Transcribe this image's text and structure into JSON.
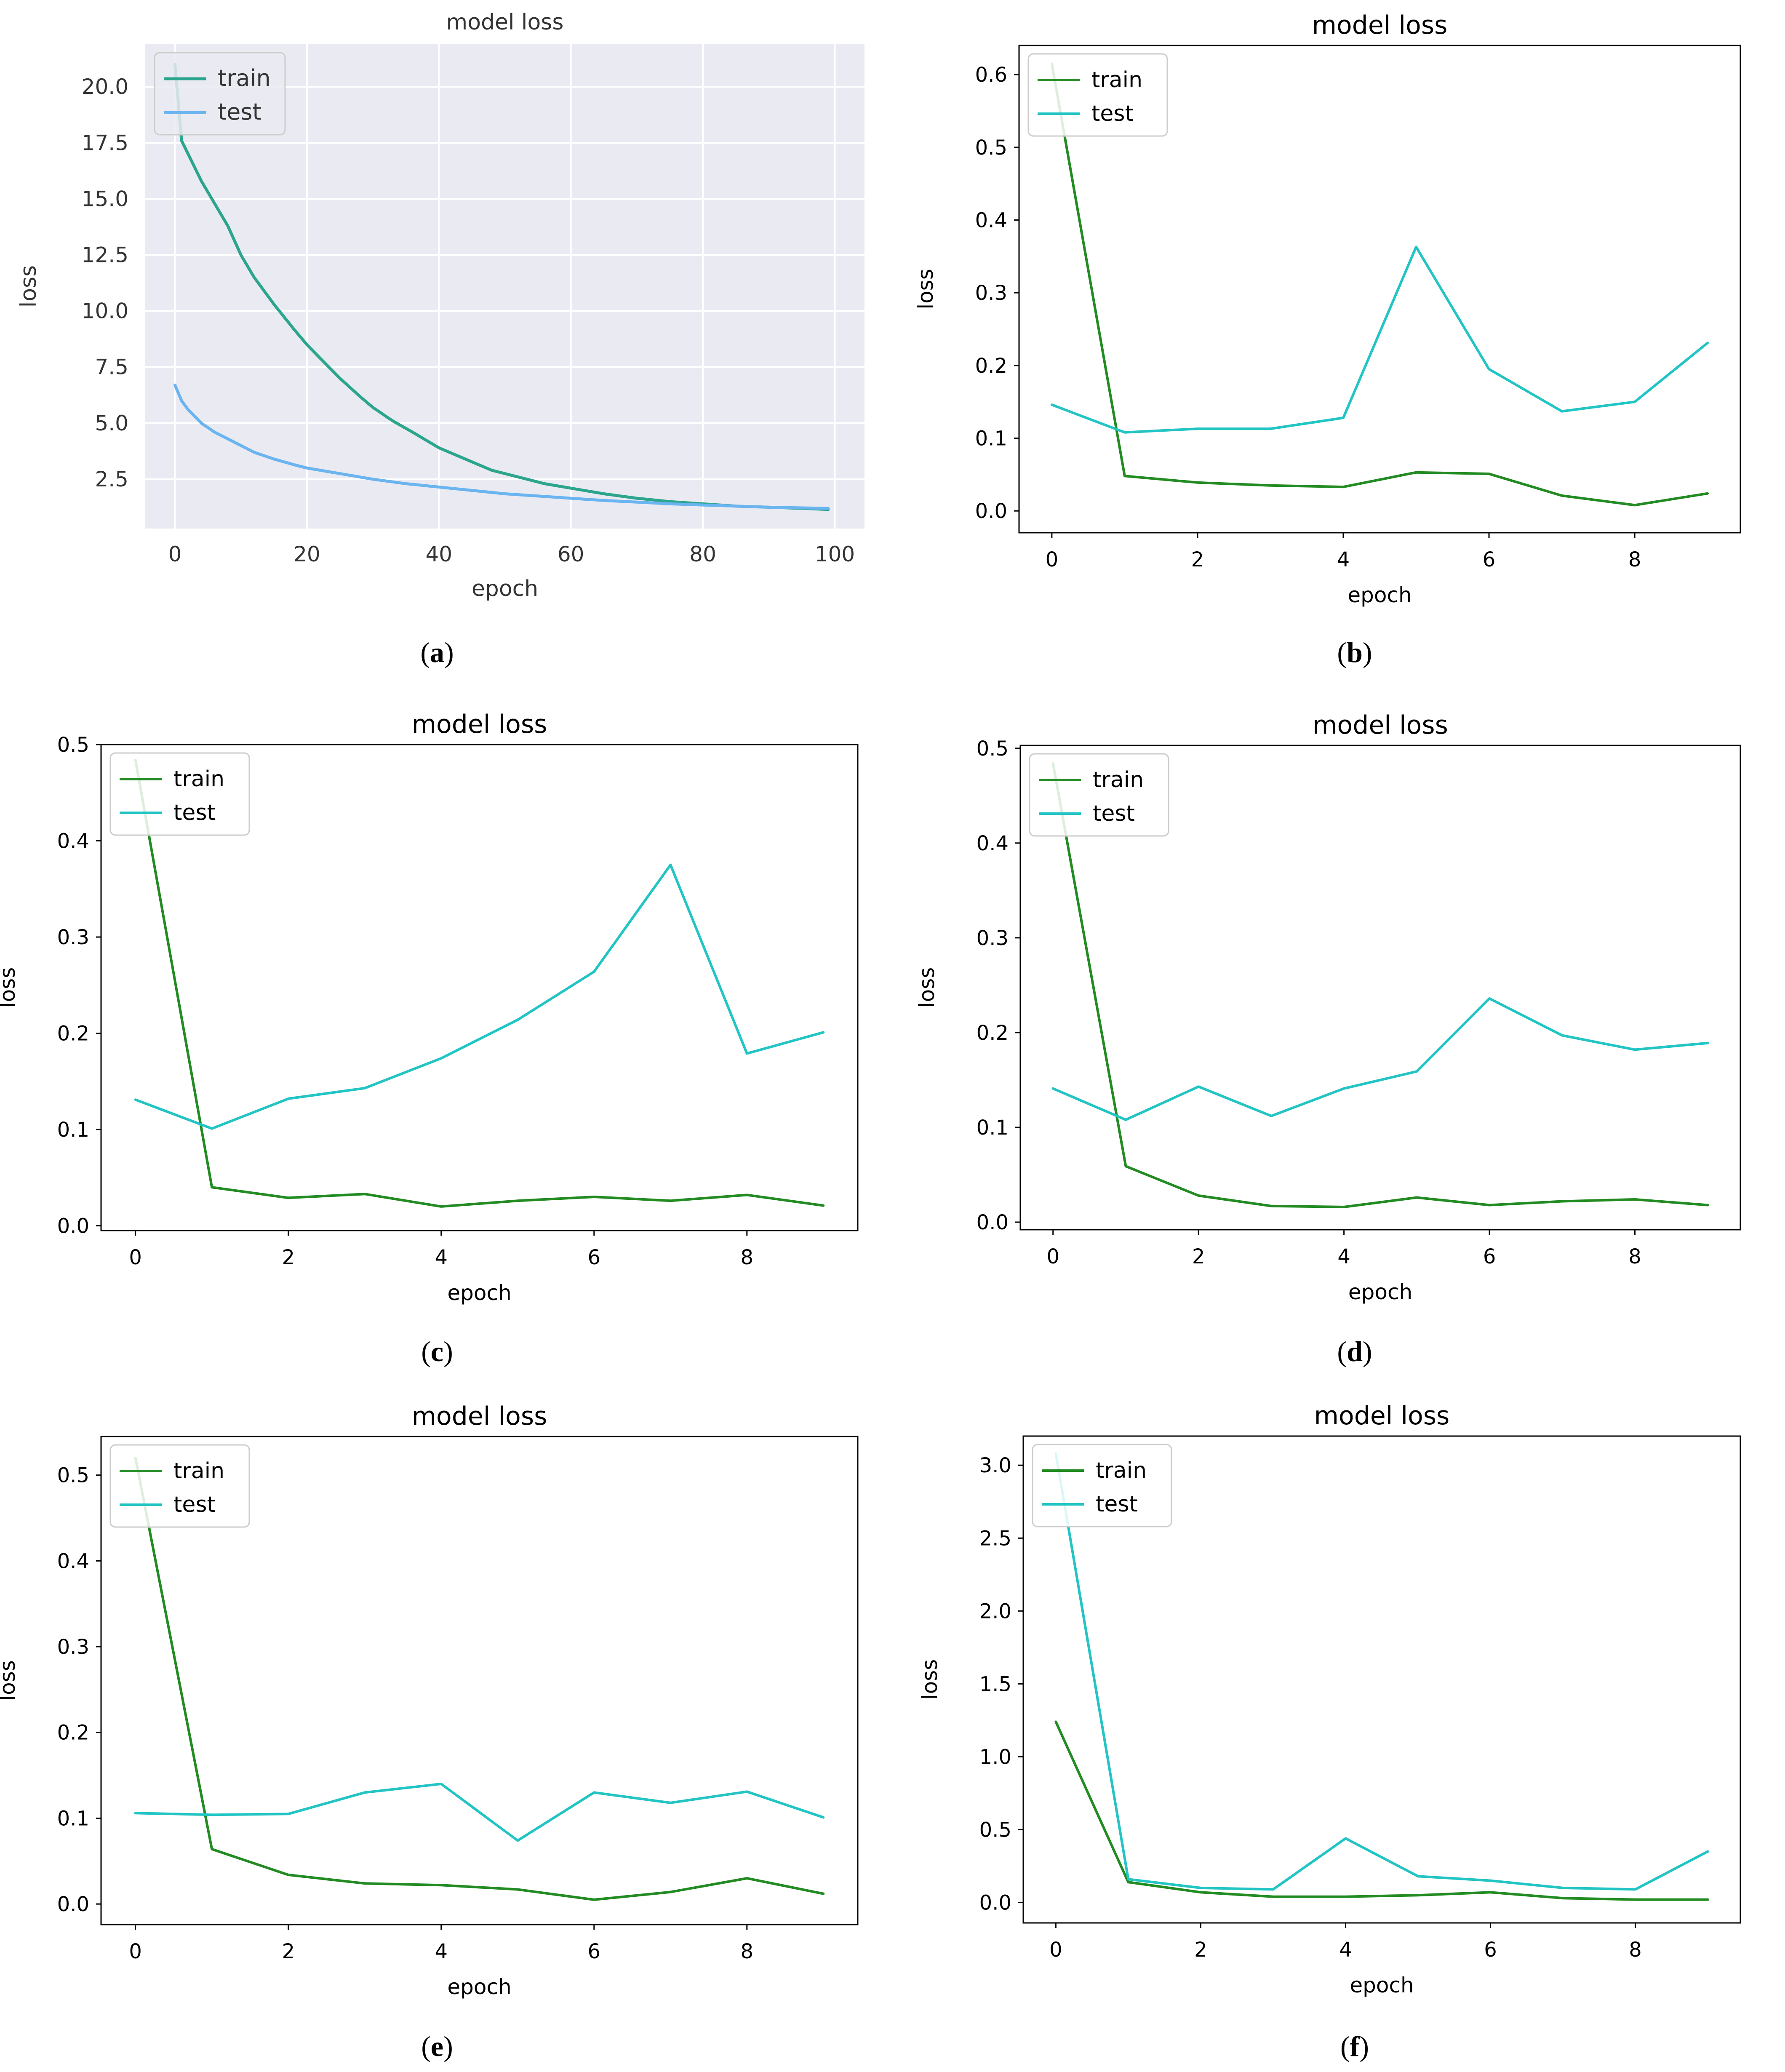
{
  "chart_data": [
    {
      "id": "a",
      "type": "line",
      "caption_letter": "a",
      "style": "seaborn",
      "title": "model loss",
      "xlabel": "epoch",
      "ylabel": "loss",
      "xlim": [
        -4.5,
        104.5
      ],
      "ylim": [
        0.3,
        21.9
      ],
      "xticks": [
        0,
        20,
        40,
        60,
        80,
        100
      ],
      "xtick_labels": [
        "0",
        "20",
        "40",
        "60",
        "80",
        "100"
      ],
      "yticks": [
        2.5,
        5.0,
        7.5,
        10.0,
        12.5,
        15.0,
        17.5,
        20.0
      ],
      "ytick_labels": [
        "2.5",
        "5.0",
        "7.5",
        "10.0",
        "12.5",
        "15.0",
        "17.5",
        "20.0"
      ],
      "legend": "upper-left",
      "series": [
        {
          "name": "train",
          "color": "#2ca58d",
          "x": [
            0,
            1,
            2,
            4,
            6,
            8,
            10,
            12,
            15,
            18,
            20,
            22,
            25,
            28,
            30,
            33,
            36,
            40,
            44,
            48,
            52,
            56,
            60,
            65,
            70,
            75,
            80,
            85,
            90,
            95,
            99
          ],
          "y": [
            21.0,
            17.6,
            17.0,
            15.8,
            14.8,
            13.8,
            12.5,
            11.5,
            10.3,
            9.2,
            8.5,
            7.9,
            7.0,
            6.2,
            5.7,
            5.1,
            4.6,
            3.9,
            3.4,
            2.9,
            2.6,
            2.3,
            2.1,
            1.85,
            1.65,
            1.5,
            1.4,
            1.3,
            1.25,
            1.2,
            1.15
          ]
        },
        {
          "name": "test",
          "color": "#6ab4f0",
          "x": [
            0,
            1,
            2,
            4,
            6,
            8,
            10,
            12,
            15,
            18,
            20,
            25,
            30,
            35,
            40,
            45,
            50,
            55,
            60,
            65,
            70,
            75,
            80,
            85,
            90,
            95,
            99
          ],
          "y": [
            6.7,
            6.0,
            5.6,
            5.0,
            4.6,
            4.3,
            4.0,
            3.7,
            3.4,
            3.15,
            3.0,
            2.75,
            2.5,
            2.3,
            2.15,
            2.0,
            1.85,
            1.75,
            1.65,
            1.55,
            1.48,
            1.4,
            1.35,
            1.3,
            1.25,
            1.22,
            1.2
          ]
        }
      ]
    },
    {
      "id": "b",
      "type": "line",
      "caption_letter": "b",
      "style": "classic",
      "title": "model loss",
      "xlabel": "epoch",
      "ylabel": "loss",
      "xlim": [
        -0.45,
        9.45
      ],
      "ylim": [
        -0.03,
        0.64
      ],
      "xticks": [
        0,
        2,
        4,
        6,
        8
      ],
      "xtick_labels": [
        "0",
        "2",
        "4",
        "6",
        "8"
      ],
      "yticks": [
        0.0,
        0.1,
        0.2,
        0.3,
        0.4,
        0.5,
        0.6
      ],
      "ytick_labels": [
        "0.0",
        "0.1",
        "0.2",
        "0.3",
        "0.4",
        "0.5",
        "0.6"
      ],
      "legend": "upper-left",
      "series": [
        {
          "name": "train",
          "color": "#228b22",
          "x": [
            0,
            1,
            2,
            3,
            4,
            5,
            6,
            7,
            8,
            9
          ],
          "y": [
            0.615,
            0.048,
            0.039,
            0.035,
            0.033,
            0.053,
            0.051,
            0.021,
            0.008,
            0.024
          ]
        },
        {
          "name": "test",
          "color": "#22c4c4",
          "x": [
            0,
            1,
            2,
            3,
            4,
            5,
            6,
            7,
            8,
            9
          ],
          "y": [
            0.146,
            0.108,
            0.113,
            0.113,
            0.128,
            0.363,
            0.195,
            0.137,
            0.15,
            0.231
          ]
        }
      ]
    },
    {
      "id": "c",
      "type": "line",
      "caption_letter": "c",
      "style": "classic",
      "title": "model loss",
      "xlabel": "epoch",
      "ylabel": "loss",
      "xlim": [
        -0.45,
        9.45
      ],
      "ylim": [
        -0.005,
        0.5
      ],
      "xticks": [
        0,
        2,
        4,
        6,
        8
      ],
      "xtick_labels": [
        "0",
        "2",
        "4",
        "6",
        "8"
      ],
      "yticks": [
        0.0,
        0.1,
        0.2,
        0.3,
        0.4,
        0.5
      ],
      "ytick_labels": [
        "0.0",
        "0.1",
        "0.2",
        "0.3",
        "0.4",
        "0.5"
      ],
      "legend": "upper-left",
      "series": [
        {
          "name": "train",
          "color": "#228b22",
          "x": [
            0,
            1,
            2,
            3,
            4,
            5,
            6,
            7,
            8,
            9
          ],
          "y": [
            0.484,
            0.04,
            0.029,
            0.033,
            0.02,
            0.026,
            0.03,
            0.026,
            0.032,
            0.021
          ]
        },
        {
          "name": "test",
          "color": "#22c4c4",
          "x": [
            0,
            1,
            2,
            3,
            4,
            5,
            6,
            7,
            8,
            9
          ],
          "y": [
            0.131,
            0.101,
            0.132,
            0.143,
            0.174,
            0.214,
            0.264,
            0.375,
            0.179,
            0.201
          ]
        }
      ]
    },
    {
      "id": "d",
      "type": "line",
      "caption_letter": "d",
      "style": "classic",
      "title": "model loss",
      "xlabel": "epoch",
      "ylabel": "loss",
      "xlim": [
        -0.45,
        9.45
      ],
      "ylim": [
        -0.008,
        0.503
      ],
      "xticks": [
        0,
        2,
        4,
        6,
        8
      ],
      "xtick_labels": [
        "0",
        "2",
        "4",
        "6",
        "8"
      ],
      "yticks": [
        0.0,
        0.1,
        0.2,
        0.3,
        0.4,
        0.5
      ],
      "ytick_labels": [
        "0.0",
        "0.1",
        "0.2",
        "0.3",
        "0.4",
        "0.5"
      ],
      "legend": "upper-left",
      "series": [
        {
          "name": "train",
          "color": "#228b22",
          "x": [
            0,
            1,
            2,
            3,
            4,
            5,
            6,
            7,
            8,
            9
          ],
          "y": [
            0.484,
            0.059,
            0.028,
            0.017,
            0.016,
            0.026,
            0.018,
            0.022,
            0.024,
            0.018
          ]
        },
        {
          "name": "test",
          "color": "#22c4c4",
          "x": [
            0,
            1,
            2,
            3,
            4,
            5,
            6,
            7,
            8,
            9
          ],
          "y": [
            0.141,
            0.108,
            0.143,
            0.112,
            0.141,
            0.159,
            0.236,
            0.197,
            0.182,
            0.189
          ]
        }
      ]
    },
    {
      "id": "e",
      "type": "line",
      "caption_letter": "e",
      "style": "classic",
      "title": "model loss",
      "xlabel": "epoch",
      "ylabel": "loss",
      "xlim": [
        -0.45,
        9.45
      ],
      "ylim": [
        -0.024,
        0.545
      ],
      "xticks": [
        0,
        2,
        4,
        6,
        8
      ],
      "xtick_labels": [
        "0",
        "2",
        "4",
        "6",
        "8"
      ],
      "yticks": [
        0.0,
        0.1,
        0.2,
        0.3,
        0.4,
        0.5
      ],
      "ytick_labels": [
        "0.0",
        "0.1",
        "0.2",
        "0.3",
        "0.4",
        "0.5"
      ],
      "legend": "upper-left",
      "series": [
        {
          "name": "train",
          "color": "#228b22",
          "x": [
            0,
            1,
            2,
            3,
            4,
            5,
            6,
            7,
            8,
            9
          ],
          "y": [
            0.52,
            0.064,
            0.034,
            0.024,
            0.022,
            0.017,
            0.005,
            0.014,
            0.03,
            0.012
          ]
        },
        {
          "name": "test",
          "color": "#22c4c4",
          "x": [
            0,
            1,
            2,
            3,
            4,
            5,
            6,
            7,
            8,
            9
          ],
          "y": [
            0.106,
            0.104,
            0.105,
            0.13,
            0.14,
            0.074,
            0.13,
            0.118,
            0.131,
            0.101
          ]
        }
      ]
    },
    {
      "id": "f",
      "type": "line",
      "caption_letter": "f",
      "style": "classic",
      "title": "model loss",
      "xlabel": "epoch",
      "ylabel": "loss",
      "xlim": [
        -0.45,
        9.45
      ],
      "ylim": [
        -0.14,
        3.2
      ],
      "xticks": [
        0,
        2,
        4,
        6,
        8
      ],
      "xtick_labels": [
        "0",
        "2",
        "4",
        "6",
        "8"
      ],
      "yticks": [
        0.0,
        0.5,
        1.0,
        1.5,
        2.0,
        2.5,
        3.0
      ],
      "ytick_labels": [
        "0.0",
        "0.5",
        "1.0",
        "1.5",
        "2.0",
        "2.5",
        "3.0"
      ],
      "legend": "upper-left",
      "series": [
        {
          "name": "train",
          "color": "#228b22",
          "x": [
            0,
            1,
            2,
            3,
            4,
            5,
            6,
            7,
            8,
            9
          ],
          "y": [
            1.24,
            0.14,
            0.07,
            0.04,
            0.04,
            0.05,
            0.07,
            0.03,
            0.02,
            0.02
          ]
        },
        {
          "name": "test",
          "color": "#22c4c4",
          "x": [
            0,
            1,
            2,
            3,
            4,
            5,
            6,
            7,
            8,
            9
          ],
          "y": [
            3.08,
            0.16,
            0.1,
            0.09,
            0.44,
            0.18,
            0.15,
            0.1,
            0.09,
            0.35
          ]
        }
      ]
    }
  ]
}
